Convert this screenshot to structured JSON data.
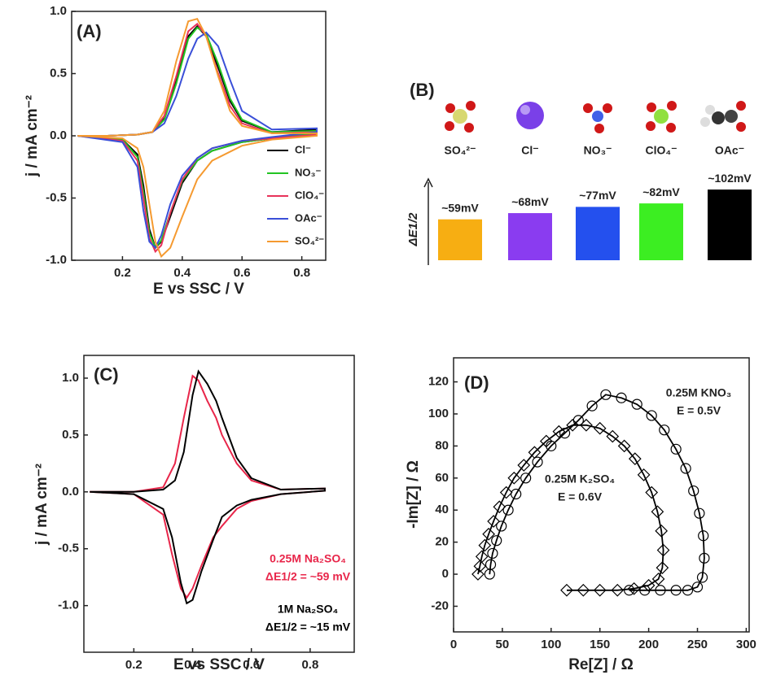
{
  "chart_data": [
    {
      "type": "line",
      "panel_label": "(A)",
      "x_label": "E vs SSC / V",
      "y_label": "j / mA cm⁻²",
      "x": [
        0.05,
        0.15,
        0.25,
        0.3,
        0.34,
        0.38,
        0.42,
        0.45,
        0.48,
        0.52,
        0.56,
        0.6,
        0.7,
        0.85,
        0.85,
        0.7,
        0.6,
        0.5,
        0.45,
        0.4,
        0.36,
        0.33,
        0.31,
        0.29,
        0.27,
        0.25,
        0.2,
        0.05
      ],
      "series": [
        {
          "name": "Cl⁻",
          "color": "#000000",
          "values": [
            0,
            0,
            0.01,
            0.03,
            0.15,
            0.45,
            0.8,
            0.88,
            0.8,
            0.55,
            0.28,
            0.12,
            0.03,
            0.05,
            0.02,
            -0.02,
            -0.05,
            -0.12,
            -0.2,
            -0.38,
            -0.65,
            -0.85,
            -0.9,
            -0.75,
            -0.4,
            -0.15,
            -0.03,
            0
          ]
        },
        {
          "name": "NO₃⁻",
          "color": "#22c422",
          "values": [
            0,
            0,
            0.01,
            0.03,
            0.13,
            0.42,
            0.78,
            0.87,
            0.82,
            0.58,
            0.3,
            0.13,
            0.03,
            0.04,
            0.02,
            -0.02,
            -0.05,
            -0.12,
            -0.2,
            -0.36,
            -0.62,
            -0.84,
            -0.9,
            -0.78,
            -0.45,
            -0.17,
            -0.03,
            0
          ]
        },
        {
          "name": "ClO₄⁻",
          "color": "#e8335a",
          "values": [
            0,
            0,
            0.01,
            0.03,
            0.16,
            0.48,
            0.84,
            0.9,
            0.8,
            0.5,
            0.24,
            0.1,
            0.02,
            0.03,
            0.01,
            -0.02,
            -0.04,
            -0.1,
            -0.18,
            -0.35,
            -0.62,
            -0.88,
            -0.93,
            -0.82,
            -0.5,
            -0.2,
            -0.04,
            0
          ]
        },
        {
          "name": "OAc⁻",
          "color": "#3a4fd8",
          "values": [
            0,
            0,
            0.01,
            0.03,
            0.1,
            0.32,
            0.62,
            0.78,
            0.83,
            0.72,
            0.45,
            0.2,
            0.05,
            0.06,
            0.03,
            -0.01,
            -0.04,
            -0.1,
            -0.18,
            -0.32,
            -0.55,
            -0.8,
            -0.9,
            -0.85,
            -0.6,
            -0.25,
            -0.05,
            0
          ]
        },
        {
          "name": "SO₄²⁻",
          "color": "#f59a30",
          "values": [
            0,
            0,
            0.01,
            0.03,
            0.2,
            0.6,
            0.92,
            0.94,
            0.8,
            0.48,
            0.2,
            0.08,
            0.02,
            0.02,
            0,
            -0.03,
            -0.08,
            -0.2,
            -0.35,
            -0.65,
            -0.9,
            -0.97,
            -0.85,
            -0.55,
            -0.25,
            -0.1,
            -0.02,
            0
          ]
        }
      ],
      "xlim": [
        0.03,
        0.88
      ],
      "xticks": [
        0.2,
        0.4,
        0.6,
        0.8
      ],
      "ylim": [
        -1,
        1
      ],
      "yticks": [
        {
          "value": -1,
          "label": "-1.0"
        },
        -0.5,
        {
          "value": 0,
          "label": "0.0"
        },
        0.5,
        {
          "value": 1,
          "label": "1.0"
        }
      ]
    },
    {
      "type": "bar",
      "panel_label": "(B)",
      "y_label": "ΔE1/2",
      "categories": [
        "SO₄²⁻",
        "Cl⁻",
        "NO₃⁻",
        "ClO₄⁻",
        "OAc⁻"
      ],
      "values": [
        59,
        68,
        77,
        82,
        102
      ],
      "value_labels": [
        "~59mV",
        "~68mV",
        "~77mV",
        "~82mV",
        "~102mV"
      ],
      "colors": [
        "#f7ae12",
        "#8a3cf0",
        "#2450ee",
        "#3cee22",
        "#000000"
      ],
      "ylim": [
        0,
        115
      ]
    },
    {
      "type": "line",
      "panel_label": "(C)",
      "x_label": "E vs SSC / V",
      "y_label": "j / mA cm⁻²",
      "x": [
        0.05,
        0.2,
        0.3,
        0.34,
        0.37,
        0.4,
        0.42,
        0.45,
        0.48,
        0.5,
        0.55,
        0.6,
        0.7,
        0.85,
        0.85,
        0.7,
        0.6,
        0.55,
        0.5,
        0.47,
        0.43,
        0.4,
        0.38,
        0.36,
        0.33,
        0.3,
        0.2,
        0.05
      ],
      "series": [
        {
          "name": "0.25M Na₂SO₄",
          "annotation": "ΔE1/2 = ~59 mV",
          "color": "#e8264a",
          "values": [
            0,
            0,
            0.04,
            0.25,
            0.65,
            1.02,
            0.98,
            0.8,
            0.65,
            0.5,
            0.25,
            0.1,
            0.02,
            0.03,
            0.01,
            -0.02,
            -0.08,
            -0.15,
            -0.3,
            -0.4,
            -0.65,
            -0.85,
            -0.93,
            -0.85,
            -0.55,
            -0.2,
            -0.02,
            0
          ]
        },
        {
          "name": "1M Na₂SO₄",
          "annotation": "ΔE1/2 = ~15 mV",
          "color": "#000000",
          "values": [
            0,
            0,
            0.02,
            0.1,
            0.35,
            0.85,
            1.06,
            0.95,
            0.8,
            0.65,
            0.3,
            0.12,
            0.02,
            0.03,
            0.01,
            -0.02,
            -0.07,
            -0.12,
            -0.22,
            -0.42,
            -0.7,
            -0.95,
            -0.98,
            -0.8,
            -0.4,
            -0.15,
            -0.02,
            0
          ]
        }
      ],
      "xlim": [
        0.03,
        0.95
      ],
      "xticks": [
        0.2,
        0.4,
        0.6,
        0.8
      ],
      "ylim": [
        -1.41,
        1.2
      ],
      "yticks": [
        {
          "value": -1,
          "label": "-1.0"
        },
        -0.5,
        {
          "value": 0,
          "label": "0.0"
        },
        0.5,
        {
          "value": 1,
          "label": "1.0"
        }
      ]
    },
    {
      "type": "scatter",
      "panel_label": "(D)",
      "x_label": "Re[Z] / Ω",
      "y_label": "-Im[Z] / Ω",
      "series": [
        {
          "name": "0.25M KNO₃",
          "annotation": "E = 0.5V",
          "marker": "circle",
          "color": "#000000",
          "x": [
            37,
            38,
            40,
            44,
            49,
            56,
            64,
            74,
            86,
            100,
            114,
            128,
            142,
            156,
            172,
            188,
            203,
            216,
            228,
            238,
            246,
            252,
            256,
            257,
            255,
            250,
            240,
            228,
            212,
            196,
            180
          ],
          "values": [
            0,
            6,
            13,
            21,
            30,
            40,
            50,
            60,
            70,
            80,
            88,
            96,
            105,
            112,
            110,
            106,
            99,
            90,
            78,
            66,
            52,
            38,
            24,
            10,
            -2,
            -8,
            -10,
            -10,
            -10,
            -10,
            -10
          ]
        },
        {
          "name": "0.25M K₂SO₄",
          "annotation": "E = 0.6V",
          "marker": "diamond",
          "color": "#000000",
          "x": [
            25,
            27,
            29,
            32,
            36,
            41,
            47,
            54,
            62,
            72,
            83,
            95,
            108,
            122,
            136,
            150,
            163,
            175,
            186,
            195,
            203,
            209,
            213,
            215,
            214,
            210,
            200,
            185,
            168,
            150,
            133,
            116
          ],
          "values": [
            0,
            5,
            11,
            18,
            25,
            33,
            42,
            51,
            60,
            68,
            76,
            83,
            89,
            93,
            93,
            91,
            86,
            80,
            72,
            62,
            51,
            39,
            27,
            15,
            4,
            -3,
            -7,
            -9,
            -10,
            -10,
            -10,
            -10
          ]
        }
      ],
      "xlim": [
        0,
        303
      ],
      "xticks": [
        0,
        50,
        100,
        150,
        200,
        250,
        300
      ],
      "ylim": [
        -36,
        135
      ],
      "yticks": [
        -20,
        0,
        20,
        40,
        60,
        80,
        100,
        120
      ]
    }
  ]
}
